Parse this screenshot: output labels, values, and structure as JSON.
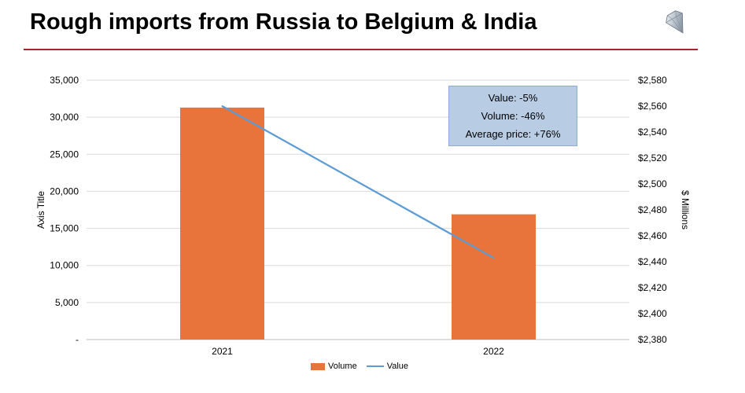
{
  "page": {
    "title": "Rough imports from Russia to Belgium & India",
    "logo_icon": "diamond-icon"
  },
  "colors": {
    "bar": "#e8743b",
    "line": "#5b9bd5",
    "rule": "#b22222",
    "grid": "#d9d9d9",
    "callout_bg": "#b8cce4"
  },
  "callout": {
    "value_change": "Value: -5%",
    "volume_change": "Volume: -46%",
    "price_change": "Average price: +76%"
  },
  "chart_data": {
    "type": "bar",
    "title": "",
    "categories": [
      "2021",
      "2022"
    ],
    "series": [
      {
        "name": "Volume",
        "type": "bar",
        "axis": "left",
        "values": [
          31300,
          16900
        ]
      },
      {
        "name": "Value",
        "type": "line",
        "axis": "right",
        "values": [
          2560,
          2443
        ]
      }
    ],
    "ylabel": "Axis Title",
    "y2label": "$ Millions",
    "ylim": [
      0,
      35000
    ],
    "y2lim": [
      2380,
      2580
    ],
    "yticks": [
      "-",
      "5,000",
      "10,000",
      "15,000",
      "20,000",
      "25,000",
      "30,000",
      "35,000"
    ],
    "y2ticks": [
      "$2,380",
      "$2,400",
      "$2,420",
      "$2,440",
      "$2,460",
      "$2,480",
      "$2,500",
      "$2,520",
      "$2,540",
      "$2,560",
      "$2,580"
    ],
    "grid": true,
    "legend": "bottom"
  }
}
